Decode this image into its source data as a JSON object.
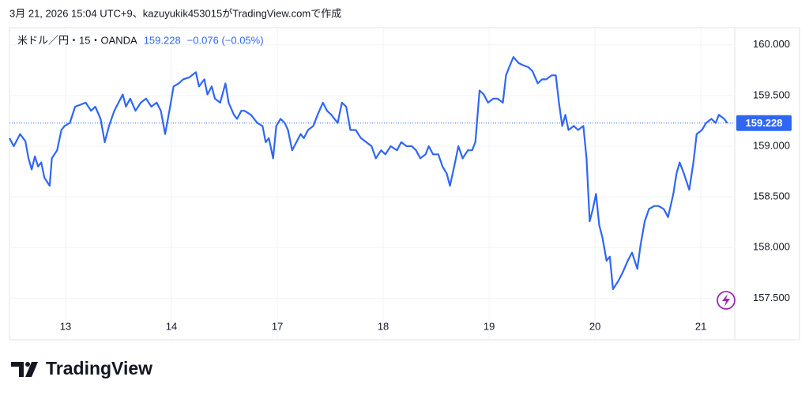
{
  "header": "3月 21, 2026 15:04 UTC+9、kazuyukik453015がTradingView.comで作成",
  "logo": "TradingView",
  "chart_data": {
    "type": "line",
    "symbol": "米ドル／円・15・OANDA",
    "change": "−0.076 (−0.05%)",
    "x": [
      -0.53,
      -0.49,
      -0.43,
      -0.38,
      -0.35,
      -0.32,
      -0.29,
      -0.26,
      -0.23,
      -0.2,
      -0.15,
      -0.13,
      -0.08,
      -0.04,
      -0.01,
      0.04,
      0.09,
      0.14,
      0.19,
      0.24,
      0.28,
      0.33,
      0.37,
      0.41,
      0.46,
      0.5,
      0.54,
      0.57,
      0.61,
      0.66,
      0.71,
      0.76,
      0.81,
      0.86,
      0.9,
      0.94,
      0.98,
      1.02,
      1.07,
      1.11,
      1.17,
      1.23,
      1.26,
      1.31,
      1.34,
      1.38,
      1.41,
      1.46,
      1.51,
      1.54,
      1.59,
      1.62,
      1.66,
      1.69,
      1.75,
      1.81,
      1.86,
      1.89,
      1.92,
      1.96,
      1.99,
      2.03,
      2.07,
      2.1,
      2.14,
      2.18,
      2.22,
      2.25,
      2.29,
      2.34,
      2.38,
      2.43,
      2.47,
      2.51,
      2.57,
      2.61,
      2.65,
      2.69,
      2.74,
      2.79,
      2.84,
      2.89,
      2.93,
      2.98,
      3.02,
      3.07,
      3.13,
      3.17,
      3.22,
      3.27,
      3.31,
      3.35,
      3.4,
      3.43,
      3.47,
      3.52,
      3.56,
      3.6,
      3.63,
      3.67,
      3.71,
      3.75,
      3.8,
      3.84,
      3.87,
      3.91,
      3.95,
      3.99,
      4.04,
      4.08,
      4.13,
      4.16,
      4.19,
      4.23,
      4.28,
      4.32,
      4.37,
      4.41,
      4.46,
      4.5,
      4.54,
      4.59,
      4.63,
      4.66,
      4.69,
      4.72,
      4.75,
      4.8,
      4.84,
      4.89,
      4.92,
      4.95,
      4.98,
      5.01,
      5.04,
      5.07,
      5.11,
      5.14,
      5.17,
      5.22,
      5.26,
      5.31,
      5.35,
      5.4,
      5.43,
      5.47,
      5.51,
      5.56,
      5.6,
      5.65,
      5.69,
      5.74,
      5.77,
      5.8,
      5.84,
      5.89,
      5.93,
      5.96,
      6.01,
      6.05,
      6.1,
      6.14,
      6.17,
      6.22,
      6.25
    ],
    "series": [
      {
        "color": "#2f66f3",
        "values": [
          159.08,
          159.0,
          159.12,
          159.05,
          158.88,
          158.77,
          158.9,
          158.8,
          158.84,
          158.69,
          158.61,
          158.88,
          158.96,
          159.16,
          159.2,
          159.23,
          159.39,
          159.41,
          159.43,
          159.35,
          159.39,
          159.27,
          159.04,
          159.2,
          159.35,
          159.43,
          159.51,
          159.39,
          159.47,
          159.35,
          159.43,
          159.47,
          159.39,
          159.43,
          159.35,
          159.12,
          159.35,
          159.59,
          159.62,
          159.66,
          159.68,
          159.73,
          159.59,
          159.66,
          159.51,
          159.59,
          159.47,
          159.43,
          159.62,
          159.43,
          159.31,
          159.27,
          159.35,
          159.35,
          159.31,
          159.23,
          159.2,
          159.04,
          159.08,
          158.88,
          159.2,
          159.27,
          159.23,
          159.16,
          158.96,
          159.04,
          159.12,
          159.08,
          159.16,
          159.2,
          159.31,
          159.43,
          159.35,
          159.31,
          159.23,
          159.43,
          159.39,
          159.16,
          159.16,
          159.08,
          159.04,
          159.0,
          158.88,
          158.96,
          158.92,
          159.0,
          158.96,
          159.04,
          159.0,
          159.0,
          158.96,
          158.88,
          158.92,
          159.0,
          158.92,
          158.92,
          158.8,
          158.73,
          158.61,
          158.8,
          159.0,
          158.88,
          158.96,
          158.96,
          159.04,
          159.55,
          159.51,
          159.43,
          159.47,
          159.47,
          159.43,
          159.7,
          159.78,
          159.88,
          159.82,
          159.8,
          159.78,
          159.74,
          159.62,
          159.66,
          159.66,
          159.7,
          159.7,
          159.43,
          159.2,
          159.31,
          159.16,
          159.2,
          159.16,
          159.2,
          158.88,
          158.26,
          158.38,
          158.53,
          158.22,
          158.1,
          157.87,
          157.91,
          157.59,
          157.67,
          157.75,
          157.87,
          157.95,
          157.79,
          158.02,
          158.26,
          158.38,
          158.41,
          158.41,
          158.38,
          158.3,
          158.53,
          158.73,
          158.84,
          158.73,
          158.57,
          158.84,
          159.12,
          159.16,
          159.23,
          159.27,
          159.23,
          159.31,
          159.27,
          159.228
        ]
      }
    ],
    "xlim": [
      -0.53,
      6.32
    ],
    "xticks": [
      {
        "value": 0,
        "label": "13"
      },
      {
        "value": 1,
        "label": "14"
      },
      {
        "value": 2,
        "label": "17"
      },
      {
        "value": 3,
        "label": "18"
      },
      {
        "value": 4,
        "label": "19"
      },
      {
        "value": 5,
        "label": "20"
      },
      {
        "value": 6,
        "label": "21"
      }
    ],
    "ylim": [
      157.09,
      160.17
    ],
    "yticks": [
      {
        "value": 157.5,
        "label": "157.500"
      },
      {
        "value": 158,
        "label": "158.000"
      },
      {
        "value": 158.5,
        "label": "158.500"
      },
      {
        "value": 159,
        "label": "159.000"
      },
      {
        "value": 159.5,
        "label": "159.500"
      },
      {
        "value": 160,
        "label": "160.000"
      }
    ],
    "grid": true
  }
}
